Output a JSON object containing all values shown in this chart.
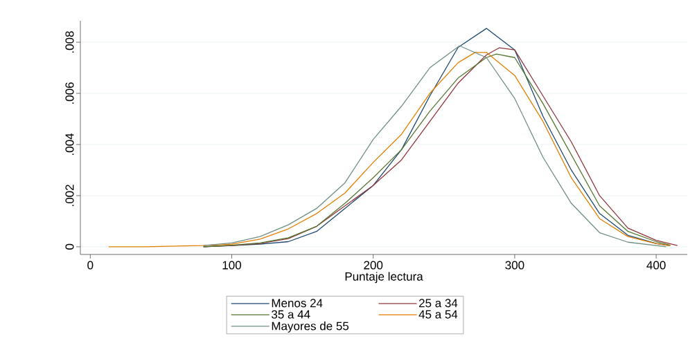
{
  "chart_data": {
    "type": "line",
    "xlabel": "Puntaje lectura",
    "xlim": [
      -7,
      422
    ],
    "xticks": [
      0,
      100,
      200,
      300,
      400
    ],
    "ylim": [
      -0.0003,
      0.00884
    ],
    "yticks": [
      {
        "value": 0,
        "label": "0"
      },
      {
        "value": 0.002,
        "label": ".002"
      },
      {
        "value": 0.004,
        "label": ".004"
      },
      {
        "value": 0.006,
        "label": ".006"
      },
      {
        "value": 0.008,
        "label": ".008"
      }
    ],
    "grid": "y",
    "legend": "bottom",
    "line_style": "solid",
    "marker": "none",
    "series": [
      {
        "name": "Menos 24",
        "color": "#1a476f",
        "x": [
          80,
          100,
          120,
          140,
          160,
          180,
          200,
          220,
          240,
          260,
          280,
          300,
          320,
          340,
          360,
          380,
          400,
          409
        ],
        "values": [
          0,
          5e-05,
          0.0001,
          0.0002,
          0.0006,
          0.0015,
          0.0024,
          0.0038,
          0.0059,
          0.0078,
          0.00854,
          0.0077,
          0.0051,
          0.003,
          0.0013,
          0.00045,
          0.00013,
          5e-05
        ]
      },
      {
        "name": "25 a 34",
        "color": "#90353b",
        "x": [
          80,
          100,
          120,
          140,
          160,
          180,
          200,
          220,
          240,
          260,
          280,
          289,
          300,
          320,
          340,
          360,
          380,
          400,
          415
        ],
        "values": [
          0,
          5e-05,
          0.00013,
          0.00032,
          0.0008,
          0.0016,
          0.0024,
          0.0034,
          0.0049,
          0.0064,
          0.0075,
          0.00778,
          0.0077,
          0.0059,
          0.0041,
          0.002,
          0.00073,
          0.00025,
          5e-05
        ]
      },
      {
        "name": "35 a 44",
        "color": "#55752f",
        "x": [
          80,
          100,
          120,
          140,
          160,
          180,
          200,
          220,
          240,
          260,
          280,
          287,
          300,
          320,
          340,
          360,
          380,
          400,
          410
        ],
        "values": [
          0,
          6e-05,
          0.00015,
          0.00035,
          0.0008,
          0.0017,
          0.0027,
          0.0038,
          0.0053,
          0.0066,
          0.0074,
          0.00754,
          0.0074,
          0.0056,
          0.0036,
          0.0016,
          0.0006,
          0.0002,
          6e-05
        ]
      },
      {
        "name": "45 a 54",
        "color": "#e37e00",
        "x": [
          13,
          40,
          80,
          100,
          120,
          140,
          160,
          180,
          200,
          220,
          240,
          260,
          272,
          280,
          300,
          320,
          340,
          360,
          380,
          400,
          410
        ],
        "values": [
          0,
          0,
          5e-05,
          0.0001,
          0.0003,
          0.0007,
          0.0013,
          0.0021,
          0.0033,
          0.0044,
          0.006,
          0.0072,
          0.0076,
          0.0076,
          0.0067,
          0.0049,
          0.0027,
          0.0011,
          0.0004,
          0.00012,
          4e-05
        ]
      },
      {
        "name": "Mayores de 55",
        "color": "#6e8e84",
        "x": [
          80,
          100,
          120,
          140,
          160,
          180,
          200,
          220,
          240,
          261,
          280,
          300,
          320,
          340,
          360,
          380,
          400,
          407
        ],
        "values": [
          5e-05,
          0.00015,
          0.0004,
          0.00086,
          0.0015,
          0.0025,
          0.0042,
          0.0055,
          0.007,
          0.00786,
          0.0074,
          0.0058,
          0.0035,
          0.0017,
          0.00055,
          0.00018,
          5e-05,
          0
        ]
      }
    ]
  }
}
